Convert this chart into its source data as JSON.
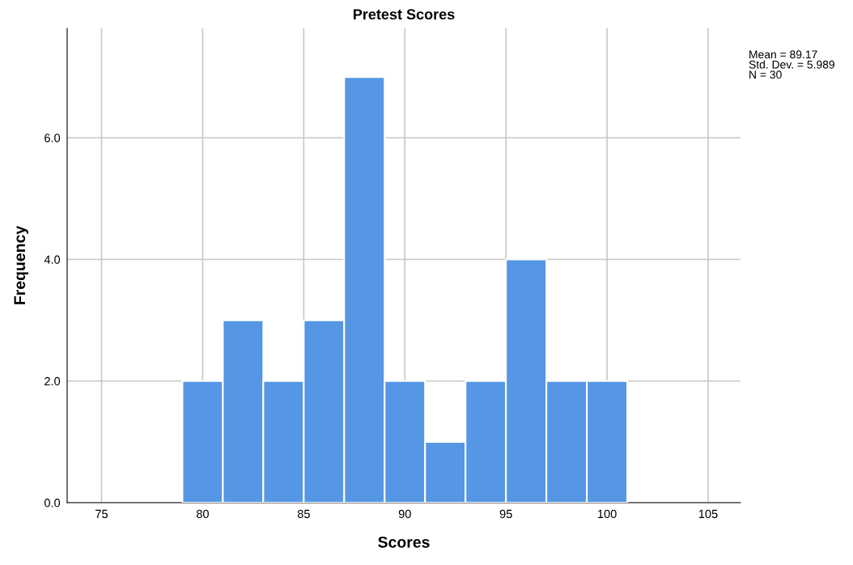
{
  "chart_data": {
    "type": "histogram",
    "title": "Pretest Scores",
    "xlabel": "Scores",
    "ylabel": "Frequency",
    "bins": [
      79,
      81,
      83,
      85,
      87,
      89,
      91,
      93,
      95,
      97,
      99,
      101
    ],
    "values": [
      2,
      3,
      2,
      3,
      7,
      2,
      1,
      2,
      4,
      2,
      2
    ],
    "color": "#5596e5",
    "xlim": [
      73.3,
      106.6
    ],
    "ylim": [
      0,
      7.8
    ],
    "xticks": [
      75,
      80,
      85,
      90,
      95,
      100,
      105
    ],
    "yticks": [
      {
        "value": 0,
        "label": "0.0"
      },
      {
        "value": 2,
        "label": "2.0"
      },
      {
        "value": 4,
        "label": "4.0"
      },
      {
        "value": 6,
        "label": "6.0"
      }
    ],
    "grid": true,
    "annotations": [
      "Mean = 89.17\nStd. Dev. = 5.989\nN = 30"
    ]
  }
}
